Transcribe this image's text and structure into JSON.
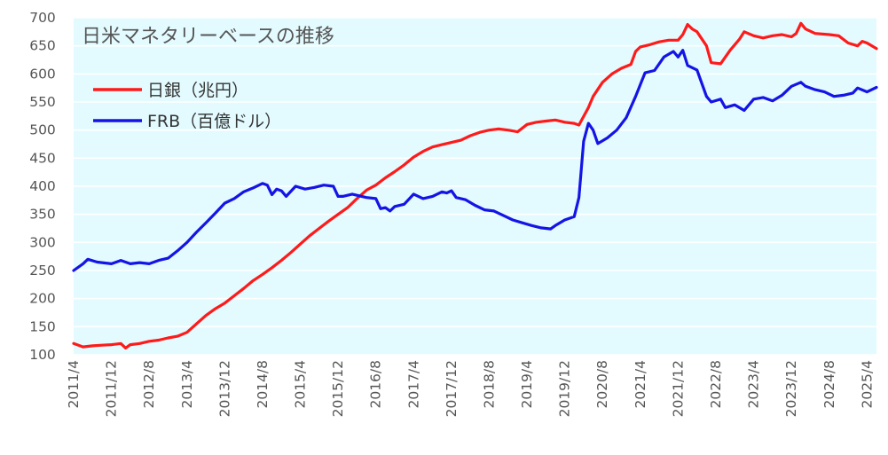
{
  "chart_data": {
    "type": "line",
    "title": "日米マネタリーベースの推移",
    "xlabel": "",
    "ylabel": "",
    "ylim": [
      100,
      700
    ],
    "yticks": [
      100,
      150,
      200,
      250,
      300,
      350,
      400,
      450,
      500,
      550,
      600,
      650,
      700
    ],
    "grid": true,
    "legend_position": "top-left",
    "x_tick_labels": [
      "2011/4",
      "2011/12",
      "2012/8",
      "2013/4",
      "2013/12",
      "2014/8",
      "2015/4",
      "2015/12",
      "2016/8",
      "2017/4",
      "2017/12",
      "2018/8",
      "2019/4",
      "2019/12",
      "2020/8",
      "2021/4",
      "2021/12",
      "2022/8",
      "2023/4",
      "2023/12",
      "2024/8",
      "2025/4"
    ],
    "x_start": "2011/4",
    "x_end": "2025/6",
    "colors": {
      "plot_background": "#e3fbff",
      "grid": "#ffffff",
      "boj": "#ff1a1a",
      "frb": "#1414e6"
    },
    "series": [
      {
        "name": "日銀（兆円）",
        "color": "#ff1a1a",
        "points": [
          [
            "2011/4",
            120
          ],
          [
            "2011/6",
            114
          ],
          [
            "2011/8",
            116
          ],
          [
            "2011/10",
            117
          ],
          [
            "2011/12",
            118
          ],
          [
            "2012/2",
            120
          ],
          [
            "2012/3",
            112
          ],
          [
            "2012/4",
            118
          ],
          [
            "2012/6",
            120
          ],
          [
            "2012/8",
            124
          ],
          [
            "2012/10",
            126
          ],
          [
            "2012/12",
            130
          ],
          [
            "2013/2",
            133
          ],
          [
            "2013/4",
            140
          ],
          [
            "2013/6",
            155
          ],
          [
            "2013/8",
            170
          ],
          [
            "2013/10",
            182
          ],
          [
            "2013/12",
            192
          ],
          [
            "2014/2",
            205
          ],
          [
            "2014/4",
            218
          ],
          [
            "2014/6",
            232
          ],
          [
            "2014/8",
            243
          ],
          [
            "2014/10",
            255
          ],
          [
            "2014/12",
            268
          ],
          [
            "2015/2",
            282
          ],
          [
            "2015/4",
            297
          ],
          [
            "2015/6",
            312
          ],
          [
            "2015/8",
            325
          ],
          [
            "2015/10",
            338
          ],
          [
            "2015/12",
            350
          ],
          [
            "2016/2",
            362
          ],
          [
            "2016/4",
            378
          ],
          [
            "2016/6",
            393
          ],
          [
            "2016/8",
            402
          ],
          [
            "2016/10",
            415
          ],
          [
            "2016/12",
            426
          ],
          [
            "2017/2",
            438
          ],
          [
            "2017/4",
            452
          ],
          [
            "2017/6",
            462
          ],
          [
            "2017/8",
            470
          ],
          [
            "2017/10",
            474
          ],
          [
            "2017/12",
            478
          ],
          [
            "2018/2",
            482
          ],
          [
            "2018/4",
            490
          ],
          [
            "2018/6",
            496
          ],
          [
            "2018/8",
            500
          ],
          [
            "2018/10",
            502
          ],
          [
            "2018/12",
            500
          ],
          [
            "2019/2",
            497
          ],
          [
            "2019/4",
            510
          ],
          [
            "2019/6",
            514
          ],
          [
            "2019/8",
            516
          ],
          [
            "2019/10",
            518
          ],
          [
            "2019/12",
            514
          ],
          [
            "2020/2",
            512
          ],
          [
            "2020/3",
            509
          ],
          [
            "2020/5",
            540
          ],
          [
            "2020/6",
            560
          ],
          [
            "2020/8",
            585
          ],
          [
            "2020/10",
            600
          ],
          [
            "2020/12",
            610
          ],
          [
            "2021/2",
            617
          ],
          [
            "2021/3",
            640
          ],
          [
            "2021/4",
            648
          ],
          [
            "2021/6",
            652
          ],
          [
            "2021/8",
            657
          ],
          [
            "2021/10",
            660
          ],
          [
            "2021/12",
            660
          ],
          [
            "2022/1",
            670
          ],
          [
            "2022/2",
            688
          ],
          [
            "2022/3",
            680
          ],
          [
            "2022/4",
            675
          ],
          [
            "2022/6",
            650
          ],
          [
            "2022/7",
            620
          ],
          [
            "2022/9",
            618
          ],
          [
            "2022/11",
            642
          ],
          [
            "2023/1",
            662
          ],
          [
            "2023/2",
            675
          ],
          [
            "2023/4",
            668
          ],
          [
            "2023/6",
            664
          ],
          [
            "2023/8",
            668
          ],
          [
            "2023/10",
            670
          ],
          [
            "2023/12",
            666
          ],
          [
            "2024/1",
            672
          ],
          [
            "2024/2",
            690
          ],
          [
            "2024/3",
            680
          ],
          [
            "2024/5",
            672
          ],
          [
            "2024/8",
            670
          ],
          [
            "2024/10",
            668
          ],
          [
            "2024/12",
            655
          ],
          [
            "2025/2",
            650
          ],
          [
            "2025/3",
            658
          ],
          [
            "2025/4",
            655
          ],
          [
            "2025/6",
            645
          ]
        ]
      },
      {
        "name": "FRB（百億ドル）",
        "color": "#1414e6",
        "points": [
          [
            "2011/4",
            250
          ],
          [
            "2011/6",
            262
          ],
          [
            "2011/7",
            270
          ],
          [
            "2011/9",
            265
          ],
          [
            "2011/12",
            262
          ],
          [
            "2012/2",
            268
          ],
          [
            "2012/4",
            262
          ],
          [
            "2012/6",
            264
          ],
          [
            "2012/8",
            262
          ],
          [
            "2012/10",
            268
          ],
          [
            "2012/12",
            272
          ],
          [
            "2013/2",
            285
          ],
          [
            "2013/4",
            300
          ],
          [
            "2013/6",
            318
          ],
          [
            "2013/8",
            335
          ],
          [
            "2013/10",
            352
          ],
          [
            "2013/12",
            370
          ],
          [
            "2014/2",
            378
          ],
          [
            "2014/4",
            390
          ],
          [
            "2014/6",
            397
          ],
          [
            "2014/8",
            405
          ],
          [
            "2014/9",
            402
          ],
          [
            "2014/10",
            385
          ],
          [
            "2014/11",
            395
          ],
          [
            "2014/12",
            392
          ],
          [
            "2015/1",
            382
          ],
          [
            "2015/3",
            400
          ],
          [
            "2015/5",
            395
          ],
          [
            "2015/7",
            398
          ],
          [
            "2015/9",
            402
          ],
          [
            "2015/11",
            400
          ],
          [
            "2015/12",
            382
          ],
          [
            "2016/1",
            382
          ],
          [
            "2016/3",
            386
          ],
          [
            "2016/5",
            382
          ],
          [
            "2016/6",
            380
          ],
          [
            "2016/8",
            378
          ],
          [
            "2016/9",
            360
          ],
          [
            "2016/10",
            362
          ],
          [
            "2016/11",
            356
          ],
          [
            "2016/12",
            364
          ],
          [
            "2017/2",
            368
          ],
          [
            "2017/4",
            386
          ],
          [
            "2017/6",
            378
          ],
          [
            "2017/8",
            382
          ],
          [
            "2017/10",
            390
          ],
          [
            "2017/11",
            388
          ],
          [
            "2017/12",
            392
          ],
          [
            "2018/1",
            380
          ],
          [
            "2018/3",
            376
          ],
          [
            "2018/5",
            366
          ],
          [
            "2018/7",
            358
          ],
          [
            "2018/9",
            356
          ],
          [
            "2018/11",
            348
          ],
          [
            "2019/1",
            340
          ],
          [
            "2019/3",
            335
          ],
          [
            "2019/5",
            330
          ],
          [
            "2019/7",
            326
          ],
          [
            "2019/9",
            324
          ],
          [
            "2019/10",
            330
          ],
          [
            "2019/12",
            340
          ],
          [
            "2020/2",
            346
          ],
          [
            "2020/3",
            380
          ],
          [
            "2020/4",
            480
          ],
          [
            "2020/5",
            512
          ],
          [
            "2020/6",
            500
          ],
          [
            "2020/7",
            476
          ],
          [
            "2020/9",
            486
          ],
          [
            "2020/11",
            500
          ],
          [
            "2021/1",
            522
          ],
          [
            "2021/3",
            560
          ],
          [
            "2021/5",
            602
          ],
          [
            "2021/7",
            606
          ],
          [
            "2021/9",
            630
          ],
          [
            "2021/11",
            640
          ],
          [
            "2021/12",
            630
          ],
          [
            "2022/1",
            642
          ],
          [
            "2022/2",
            615
          ],
          [
            "2022/4",
            607
          ],
          [
            "2022/6",
            560
          ],
          [
            "2022/7",
            550
          ],
          [
            "2022/9",
            555
          ],
          [
            "2022/10",
            540
          ],
          [
            "2022/12",
            545
          ],
          [
            "2023/2",
            535
          ],
          [
            "2023/4",
            555
          ],
          [
            "2023/6",
            558
          ],
          [
            "2023/8",
            552
          ],
          [
            "2023/10",
            562
          ],
          [
            "2023/12",
            578
          ],
          [
            "2024/2",
            585
          ],
          [
            "2024/3",
            578
          ],
          [
            "2024/5",
            572
          ],
          [
            "2024/7",
            568
          ],
          [
            "2024/9",
            560
          ],
          [
            "2024/11",
            562
          ],
          [
            "2025/1",
            566
          ],
          [
            "2025/2",
            575
          ],
          [
            "2025/4",
            568
          ],
          [
            "2025/6",
            576
          ]
        ]
      }
    ]
  }
}
